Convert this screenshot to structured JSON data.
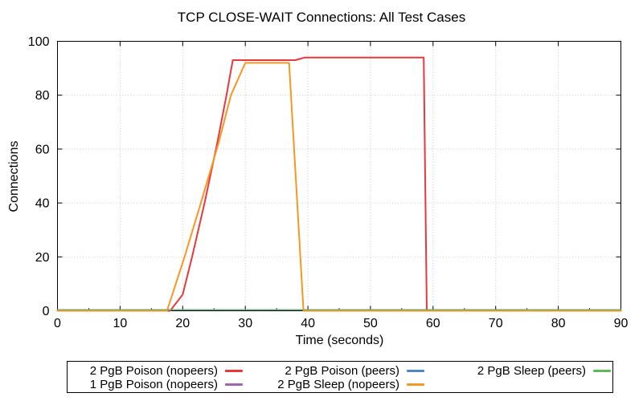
{
  "chart_data": {
    "type": "line",
    "title": "TCP CLOSE-WAIT Connections: All Test Cases",
    "xlabel": "Time (seconds)",
    "ylabel": "Connections",
    "xlim": [
      0,
      90
    ],
    "ylim": [
      0,
      100
    ],
    "xticks": [
      0,
      10,
      20,
      30,
      40,
      50,
      60,
      70,
      80,
      90
    ],
    "yticks": [
      0,
      20,
      40,
      60,
      80,
      100
    ],
    "x_minor_step": 5,
    "grid": {
      "show": true,
      "style": "dotted",
      "color": "#c6c6c6"
    },
    "axis_color": "#000000",
    "legend_position": "below-box",
    "series": [
      {
        "name": "2 PgB Poison (nopeers)",
        "color": "#e8383d",
        "points": [
          [
            0,
            0
          ],
          [
            17,
            0
          ],
          [
            18,
            0
          ],
          [
            20,
            6
          ],
          [
            21.5,
            20
          ],
          [
            23.5,
            40
          ],
          [
            25.5,
            62
          ],
          [
            27,
            80
          ],
          [
            28,
            93
          ],
          [
            38,
            93
          ],
          [
            39.5,
            94
          ],
          [
            58.5,
            94
          ],
          [
            59,
            0
          ],
          [
            90,
            0
          ]
        ]
      },
      {
        "name": "1 PgB Poison (nopeers)",
        "color": "#a264af",
        "points": [
          [
            0,
            0
          ],
          [
            90,
            0
          ]
        ]
      },
      {
        "name": "2 PgB Poison (peers)",
        "color": "#5186c5",
        "points": [
          [
            0,
            0
          ],
          [
            90,
            0
          ]
        ]
      },
      {
        "name": "2 PgB Sleep (nopeers)",
        "color": "#f89623",
        "points": [
          [
            0,
            0
          ],
          [
            17.5,
            0
          ],
          [
            20.3,
            20
          ],
          [
            22.9,
            40
          ],
          [
            25.7,
            62
          ],
          [
            27.7,
            80
          ],
          [
            30,
            92
          ],
          [
            37,
            92
          ],
          [
            39.3,
            0
          ],
          [
            90,
            0
          ]
        ]
      },
      {
        "name": "2 PgB Sleep (peers)",
        "color": "#5fb95a",
        "points": [
          [
            0,
            0
          ],
          [
            90,
            0
          ]
        ]
      }
    ]
  },
  "legend": {
    "entries": [
      {
        "series_index": 0,
        "col": 0,
        "row": 0
      },
      {
        "series_index": 1,
        "col": 0,
        "row": 1
      },
      {
        "series_index": 2,
        "col": 1,
        "row": 0
      },
      {
        "series_index": 3,
        "col": 1,
        "row": 1
      },
      {
        "series_index": 4,
        "col": 2,
        "row": 0
      }
    ]
  }
}
